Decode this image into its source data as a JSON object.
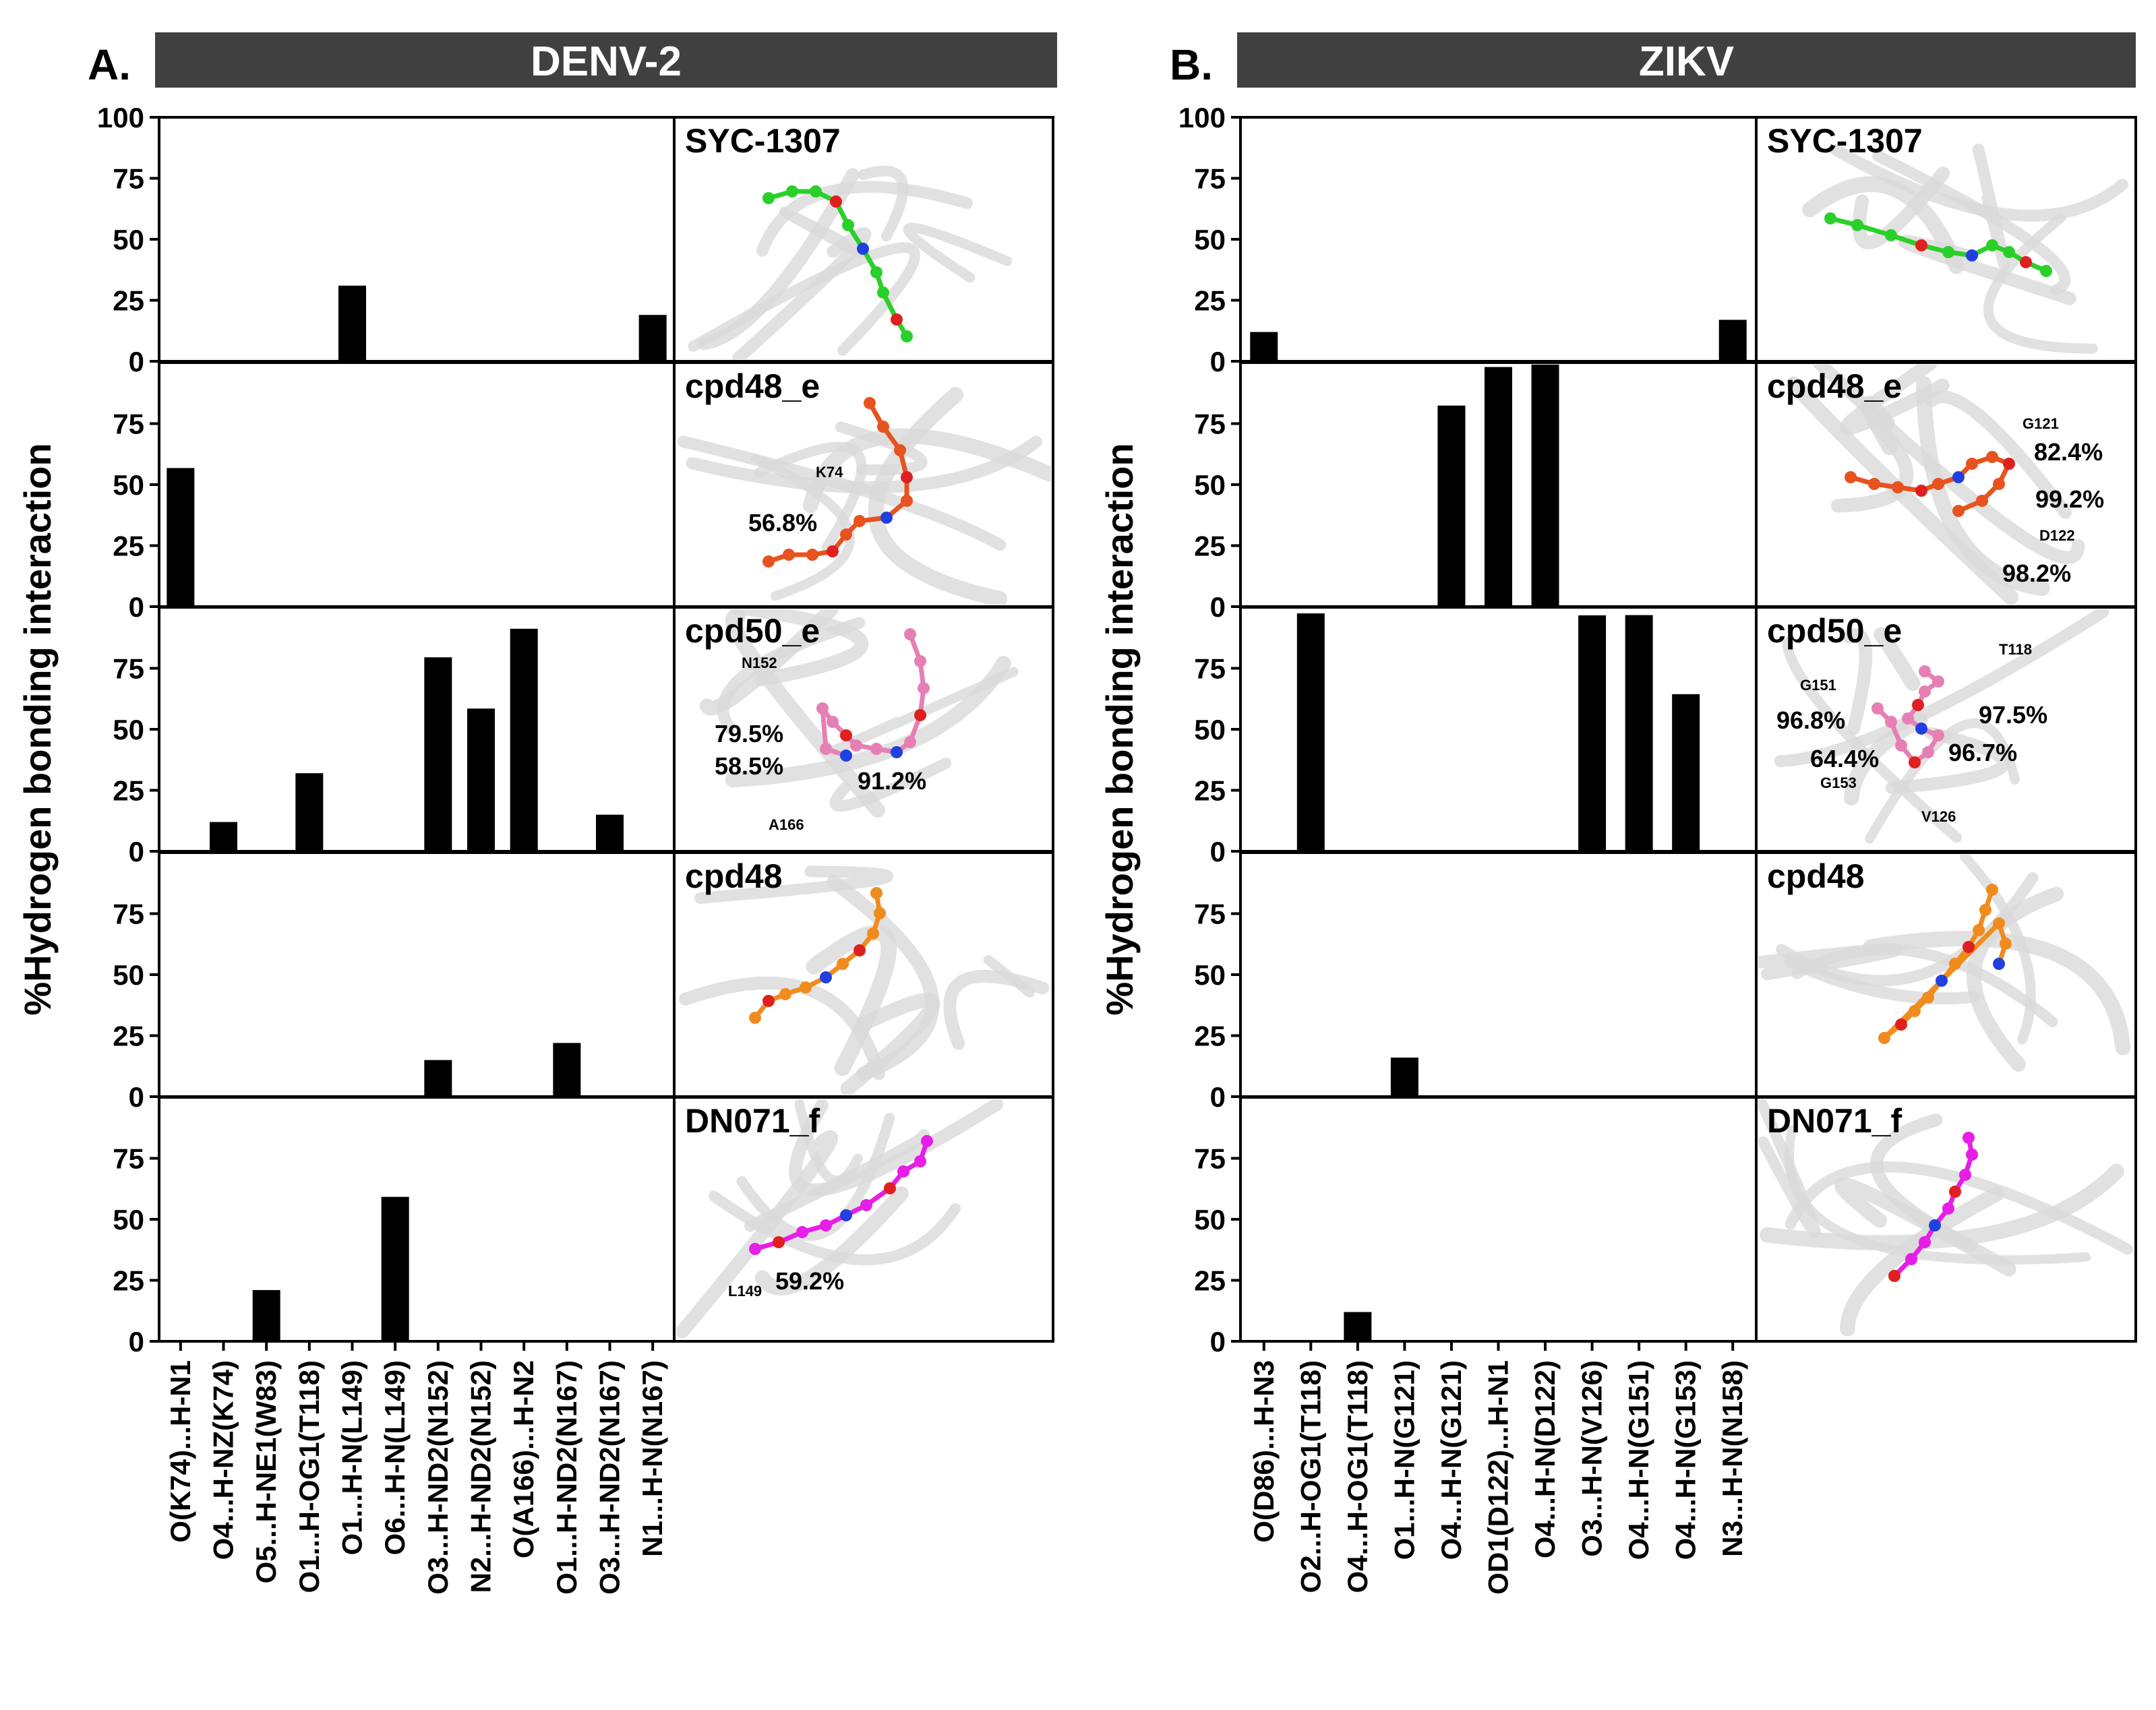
{
  "figure": {
    "panels": [
      {
        "label": "A.",
        "title": "DENV-2",
        "ylabel": "%Hydrogen bonding interaction",
        "categories": [
          "O(K74)...H-N1",
          "O4...H-NZ(K74)",
          "O5...H-NE1(W83)",
          "O1...H-OG1(T118)",
          "O1...H-N(L149)",
          "O6...H-N(L149)",
          "O3...H-ND2(N152)",
          "N2...H-ND2(N152)",
          "O(A166)...H-N2",
          "O1...H-ND2(N167)",
          "O3...H-ND2(N167)",
          "N1...H-N(N167)"
        ]
      },
      {
        "label": "B.",
        "title": "ZIKV",
        "ylabel": "%Hydrogen bonding interaction",
        "categories": [
          "O(D86)...H-N3",
          "O2...H-OG1(T118)",
          "O4...H-OG1(T118)",
          "O1...H-N(G121)",
          "O4...H-N(G121)",
          "OD1(D122)...H-N1",
          "O4...H-N(D122)",
          "O3...H-N(V126)",
          "O4...H-N(G151)",
          "O4...H-N(G153)",
          "N3...H-N(N158)"
        ]
      }
    ],
    "compounds": [
      {
        "name": "SYC-1307",
        "color": "#2ad02a"
      },
      {
        "name": "cpd48_e",
        "color": "#e8521e"
      },
      {
        "name": "cpd50_e",
        "color": "#e680b4"
      },
      {
        "name": "cpd48",
        "color": "#f08c1e"
      },
      {
        "name": "DN071_f",
        "color": "#e61ee6"
      }
    ],
    "structure_annotations": {
      "A": [
        [],
        [
          {
            "text": "K74",
            "small": true
          },
          {
            "text": "56.8%"
          }
        ],
        [
          {
            "text": "N152",
            "small": true
          },
          {
            "text": "79.5%"
          },
          {
            "text": "58.5%"
          },
          {
            "text": "91.2%"
          },
          {
            "text": "A166",
            "small": true
          }
        ],
        [],
        [
          {
            "text": "59.2%"
          },
          {
            "text": "L149",
            "small": true
          }
        ]
      ],
      "B": [
        [],
        [
          {
            "text": "G121",
            "small": true
          },
          {
            "text": "82.4%"
          },
          {
            "text": "99.2%"
          },
          {
            "text": "D122",
            "small": true
          },
          {
            "text": "98.2%"
          }
        ],
        [
          {
            "text": "T118",
            "small": true
          },
          {
            "text": "G151",
            "small": true
          },
          {
            "text": "96.8%"
          },
          {
            "text": "97.5%"
          },
          {
            "text": "64.4%"
          },
          {
            "text": "96.7%"
          },
          {
            "text": "G153",
            "small": true
          },
          {
            "text": "V126",
            "small": true
          }
        ],
        [],
        []
      ]
    }
  },
  "chart_data": [
    {
      "type": "bar",
      "title": "DENV-2",
      "xlabel": "",
      "ylabel": "%Hydrogen bonding interaction",
      "ylim": [
        0,
        100
      ],
      "yticks_top": [
        0,
        25,
        50,
        75,
        100
      ],
      "yticks_other": [
        0,
        25,
        50,
        75
      ],
      "categories": [
        "O(K74)...H-N1",
        "O4...H-NZ(K74)",
        "O5...H-NE1(W83)",
        "O1...H-OG1(T118)",
        "O1...H-N(L149)",
        "O6...H-N(L149)",
        "O3...H-ND2(N152)",
        "N2...H-ND2(N152)",
        "O(A166)...H-N2",
        "O1...H-ND2(N167)",
        "O3...H-ND2(N167)",
        "N1...H-N(N167)"
      ],
      "series": [
        {
          "name": "SYC-1307",
          "values": [
            0,
            0,
            0,
            0,
            31,
            0,
            0,
            0,
            0,
            0,
            0,
            19
          ]
        },
        {
          "name": "cpd48_e",
          "values": [
            56.8,
            0,
            0,
            0,
            0,
            0,
            0,
            0,
            0,
            0,
            0,
            0
          ]
        },
        {
          "name": "cpd50_e",
          "values": [
            0,
            12,
            0,
            32,
            0,
            0,
            79.5,
            58.5,
            91.2,
            0,
            15,
            0
          ]
        },
        {
          "name": "cpd48",
          "values": [
            0,
            0,
            0,
            0,
            0,
            0,
            15,
            0,
            0,
            22,
            0,
            0
          ]
        },
        {
          "name": "DN071_f",
          "values": [
            0,
            0,
            21,
            0,
            0,
            59.2,
            0,
            0,
            0,
            0,
            0,
            0
          ]
        }
      ]
    },
    {
      "type": "bar",
      "title": "ZIKV",
      "xlabel": "",
      "ylabel": "%Hydrogen bonding interaction",
      "ylim": [
        0,
        100
      ],
      "yticks_top": [
        0,
        25,
        50,
        75,
        100
      ],
      "yticks_other": [
        0,
        25,
        50,
        75
      ],
      "categories": [
        "O(D86)...H-N3",
        "O2...H-OG1(T118)",
        "O4...H-OG1(T118)",
        "O1...H-N(G121)",
        "O4...H-N(G121)",
        "OD1(D122)...H-N1",
        "O4...H-N(D122)",
        "O3...H-N(V126)",
        "O4...H-N(G151)",
        "O4...H-N(G153)",
        "N3...H-N(N158)"
      ],
      "series": [
        {
          "name": "SYC-1307",
          "values": [
            12,
            0,
            0,
            0,
            0,
            0,
            0,
            0,
            0,
            0,
            17
          ]
        },
        {
          "name": "cpd48_e",
          "values": [
            0,
            0,
            0,
            0,
            82.4,
            98.2,
            99.2,
            0,
            0,
            0,
            0
          ]
        },
        {
          "name": "cpd50_e",
          "values": [
            0,
            97.5,
            0,
            0,
            0,
            0,
            0,
            96.7,
            96.8,
            64.4,
            0
          ]
        },
        {
          "name": "cpd48",
          "values": [
            0,
            0,
            0,
            16,
            0,
            0,
            0,
            0,
            0,
            0,
            0
          ]
        },
        {
          "name": "DN071_f",
          "values": [
            0,
            0,
            12,
            0,
            0,
            0,
            0,
            0,
            0,
            0,
            0
          ]
        }
      ]
    }
  ]
}
